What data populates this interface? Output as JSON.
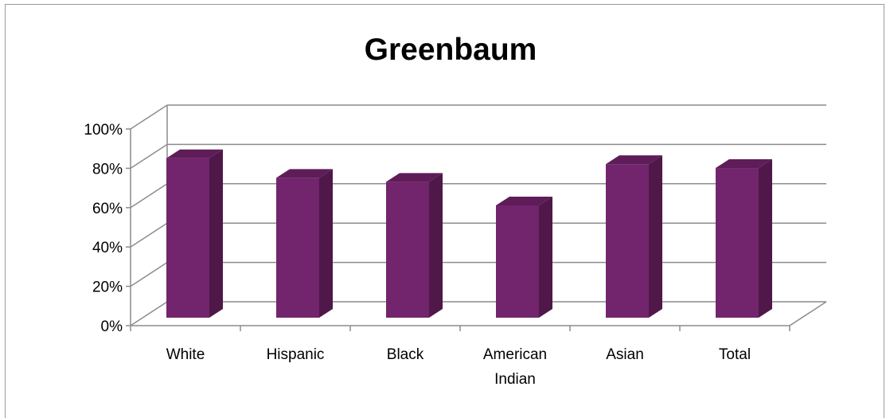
{
  "chart_data": {
    "type": "bar",
    "title": "Greenbaum",
    "categories": [
      "White",
      "Hispanic",
      "Black",
      "American\nIndian",
      "Asian",
      "Total"
    ],
    "values": [
      0.9,
      0.8,
      0.78,
      0.66,
      0.87,
      0.85
    ],
    "ylim": [
      0,
      1
    ],
    "yticks": [
      "0%",
      "20%",
      "40%",
      "60%",
      "80%",
      "100%"
    ],
    "xlabel": "",
    "ylabel": "",
    "grid": true,
    "legend": "none",
    "style": "3d-column",
    "colors": {
      "bar_front": "#72246c",
      "bar_side": "#4f1849",
      "bar_top": "#5e1d58",
      "gridline": "#8c8c8c"
    }
  }
}
